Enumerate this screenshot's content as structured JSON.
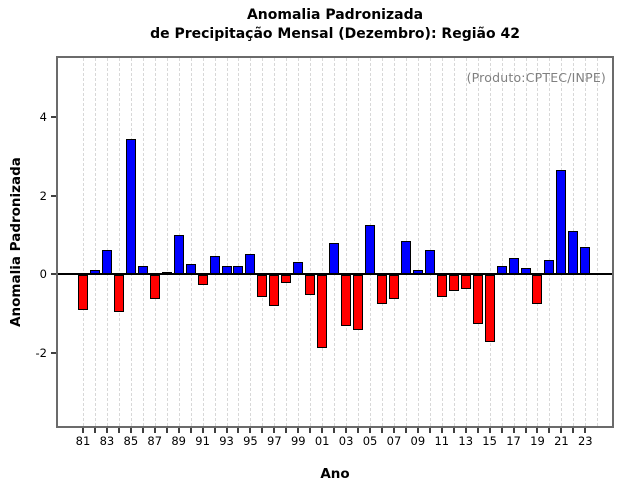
{
  "title": {
    "line1": "Anomalia Padronizada",
    "line2": "de Precipitação Mensal (Dezembro): Região 42"
  },
  "annotation": "(Produto:CPTEC/INPE)",
  "chart_data": {
    "type": "bar",
    "title": "Anomalia Padronizada de Precipitação Mensal (Dezembro): Região 42",
    "xlabel": "Ano",
    "ylabel": "Anomalia Padronizada",
    "x": [
      1981,
      1982,
      1983,
      1984,
      1985,
      1986,
      1987,
      1988,
      1989,
      1990,
      1991,
      1992,
      1993,
      1994,
      1995,
      1996,
      1997,
      1998,
      1999,
      2000,
      2001,
      2002,
      2003,
      2004,
      2005,
      2006,
      2007,
      2008,
      2009,
      2010,
      2011,
      2012,
      2013,
      2014,
      2015,
      2016,
      2017,
      2018,
      2019,
      2020,
      2021,
      2022,
      2023
    ],
    "values": [
      -0.9,
      0.1,
      0.6,
      -0.95,
      3.45,
      0.2,
      -0.6,
      0.05,
      1.0,
      0.25,
      -0.25,
      0.45,
      0.2,
      0.2,
      0.5,
      -0.55,
      -0.8,
      -0.2,
      0.3,
      -0.5,
      -1.85,
      0.8,
      -1.3,
      -1.4,
      1.25,
      -0.75,
      -0.6,
      0.85,
      0.1,
      0.6,
      -0.55,
      -0.4,
      -0.35,
      -1.25,
      -1.7,
      0.2,
      0.4,
      0.15,
      -0.75,
      0.35,
      2.65,
      1.1,
      0.7
    ],
    "xtick_labels": [
      "81",
      "83",
      "85",
      "87",
      "89",
      "91",
      "93",
      "95",
      "97",
      "99",
      "01",
      "03",
      "05",
      "07",
      "09",
      "11",
      "13",
      "15",
      "17",
      "19",
      "21",
      "23"
    ],
    "yticks": [
      -2,
      0,
      2,
      4
    ],
    "ylim": [
      -3.87,
      5.5
    ],
    "grid": "vertical-dashed-per-year",
    "legend": "none",
    "bar_colors": {
      "positive": "#0000ff",
      "negative": "#ff0000"
    },
    "bar_border_color": "#000000",
    "annotation_color": "#808080"
  }
}
